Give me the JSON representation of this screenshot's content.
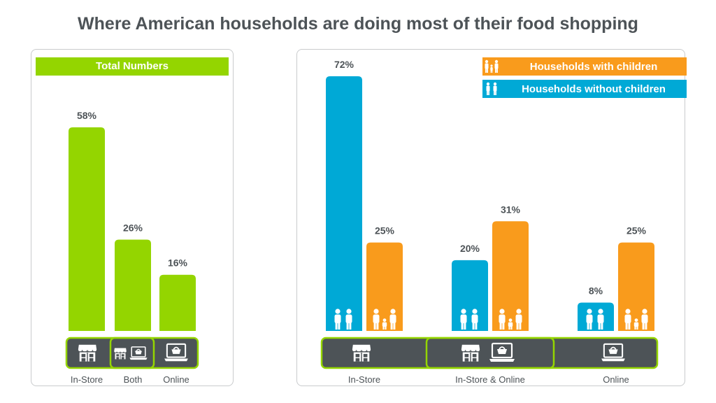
{
  "title": "Where American households are doing most of their food shopping",
  "colors": {
    "total": "#94d500",
    "with_children": "#f99b1c",
    "without_children": "#00a9d6",
    "icon_bar": "#4d5357",
    "text": "#4d5357"
  },
  "legend": {
    "with_children": "Households with children",
    "without_children": "Households without children"
  },
  "chart_data": [
    {
      "type": "bar",
      "title": "Total Numbers",
      "categories": [
        "In-Store",
        "Both",
        "Online"
      ],
      "values": [
        58,
        26,
        16
      ],
      "data_labels": [
        "58%",
        "26%",
        "16%"
      ],
      "unit": "%",
      "ylim": [
        0,
        65
      ]
    },
    {
      "type": "bar",
      "title": "",
      "categories": [
        "In-Store",
        "In-Store & Online",
        "Online"
      ],
      "series": [
        {
          "name": "Households without children",
          "values": [
            72,
            20,
            8
          ],
          "data_labels": [
            "72%",
            "20%",
            "8%"
          ]
        },
        {
          "name": "Households with children",
          "values": [
            25,
            31,
            25
          ],
          "data_labels": [
            "25%",
            "31%",
            "25%"
          ]
        }
      ],
      "unit": "%",
      "ylim": [
        0,
        72
      ],
      "legend_position": "top-right"
    }
  ]
}
